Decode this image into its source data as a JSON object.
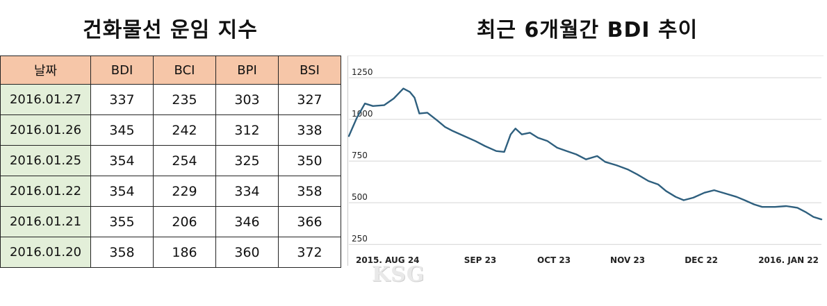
{
  "table": {
    "title": "건화물선 운임 지수",
    "headers": [
      "날짜",
      "BDI",
      "BCI",
      "BPI",
      "BSI"
    ],
    "rows": [
      [
        "2016.01.27",
        "337",
        "235",
        "303",
        "327"
      ],
      [
        "2016.01.26",
        "345",
        "242",
        "312",
        "338"
      ],
      [
        "2016.01.25",
        "354",
        "254",
        "325",
        "350"
      ],
      [
        "2016.01.22",
        "354",
        "229",
        "334",
        "358"
      ],
      [
        "2016.01.21",
        "355",
        "206",
        "346",
        "366"
      ],
      [
        "2016.01.20",
        "358",
        "186",
        "360",
        "372"
      ]
    ]
  },
  "chart_data": {
    "type": "line",
    "title": "최근 6개월간 BDI 추이",
    "xlabel": "",
    "ylabel": "",
    "ylim": [
      230,
      1300
    ],
    "y_ticks": [
      "1250",
      "1000",
      "750",
      "500",
      "250"
    ],
    "x_tick_labels": [
      "2015. AUG 24",
      "SEP 23",
      "OCT 23",
      "NOV 23",
      "DEC 22",
      "2016. JAN 22"
    ],
    "grid": "horizontal",
    "legend": "none",
    "line_color": "#2e5f7e",
    "series": [
      {
        "values": [
          [
            0,
            900
          ],
          [
            5,
            1010
          ],
          [
            10,
            1095
          ],
          [
            15,
            1080
          ],
          [
            22,
            1085
          ],
          [
            28,
            1125
          ],
          [
            34,
            1185
          ],
          [
            38,
            1165
          ],
          [
            41,
            1130
          ],
          [
            44,
            1035
          ],
          [
            49,
            1040
          ],
          [
            55,
            995
          ],
          [
            60,
            955
          ],
          [
            65,
            930
          ],
          [
            72,
            900
          ],
          [
            79,
            870
          ],
          [
            85,
            840
          ],
          [
            92,
            810
          ],
          [
            97,
            805
          ],
          [
            101,
            910
          ],
          [
            104,
            945
          ],
          [
            108,
            910
          ],
          [
            113,
            920
          ],
          [
            118,
            890
          ],
          [
            124,
            870
          ],
          [
            130,
            830
          ],
          [
            136,
            810
          ],
          [
            142,
            790
          ],
          [
            148,
            760
          ],
          [
            155,
            780
          ],
          [
            160,
            745
          ],
          [
            167,
            725
          ],
          [
            174,
            700
          ],
          [
            180,
            670
          ],
          [
            187,
            630
          ],
          [
            193,
            610
          ],
          [
            198,
            570
          ],
          [
            204,
            535
          ],
          [
            209,
            515
          ],
          [
            215,
            530
          ],
          [
            222,
            560
          ],
          [
            228,
            575
          ],
          [
            235,
            555
          ],
          [
            242,
            535
          ],
          [
            247,
            515
          ],
          [
            253,
            490
          ],
          [
            258,
            475
          ],
          [
            266,
            475
          ],
          [
            273,
            480
          ],
          [
            280,
            470
          ],
          [
            285,
            445
          ],
          [
            290,
            415
          ],
          [
            295,
            400
          ]
        ]
      }
    ]
  },
  "watermark": "KSG"
}
